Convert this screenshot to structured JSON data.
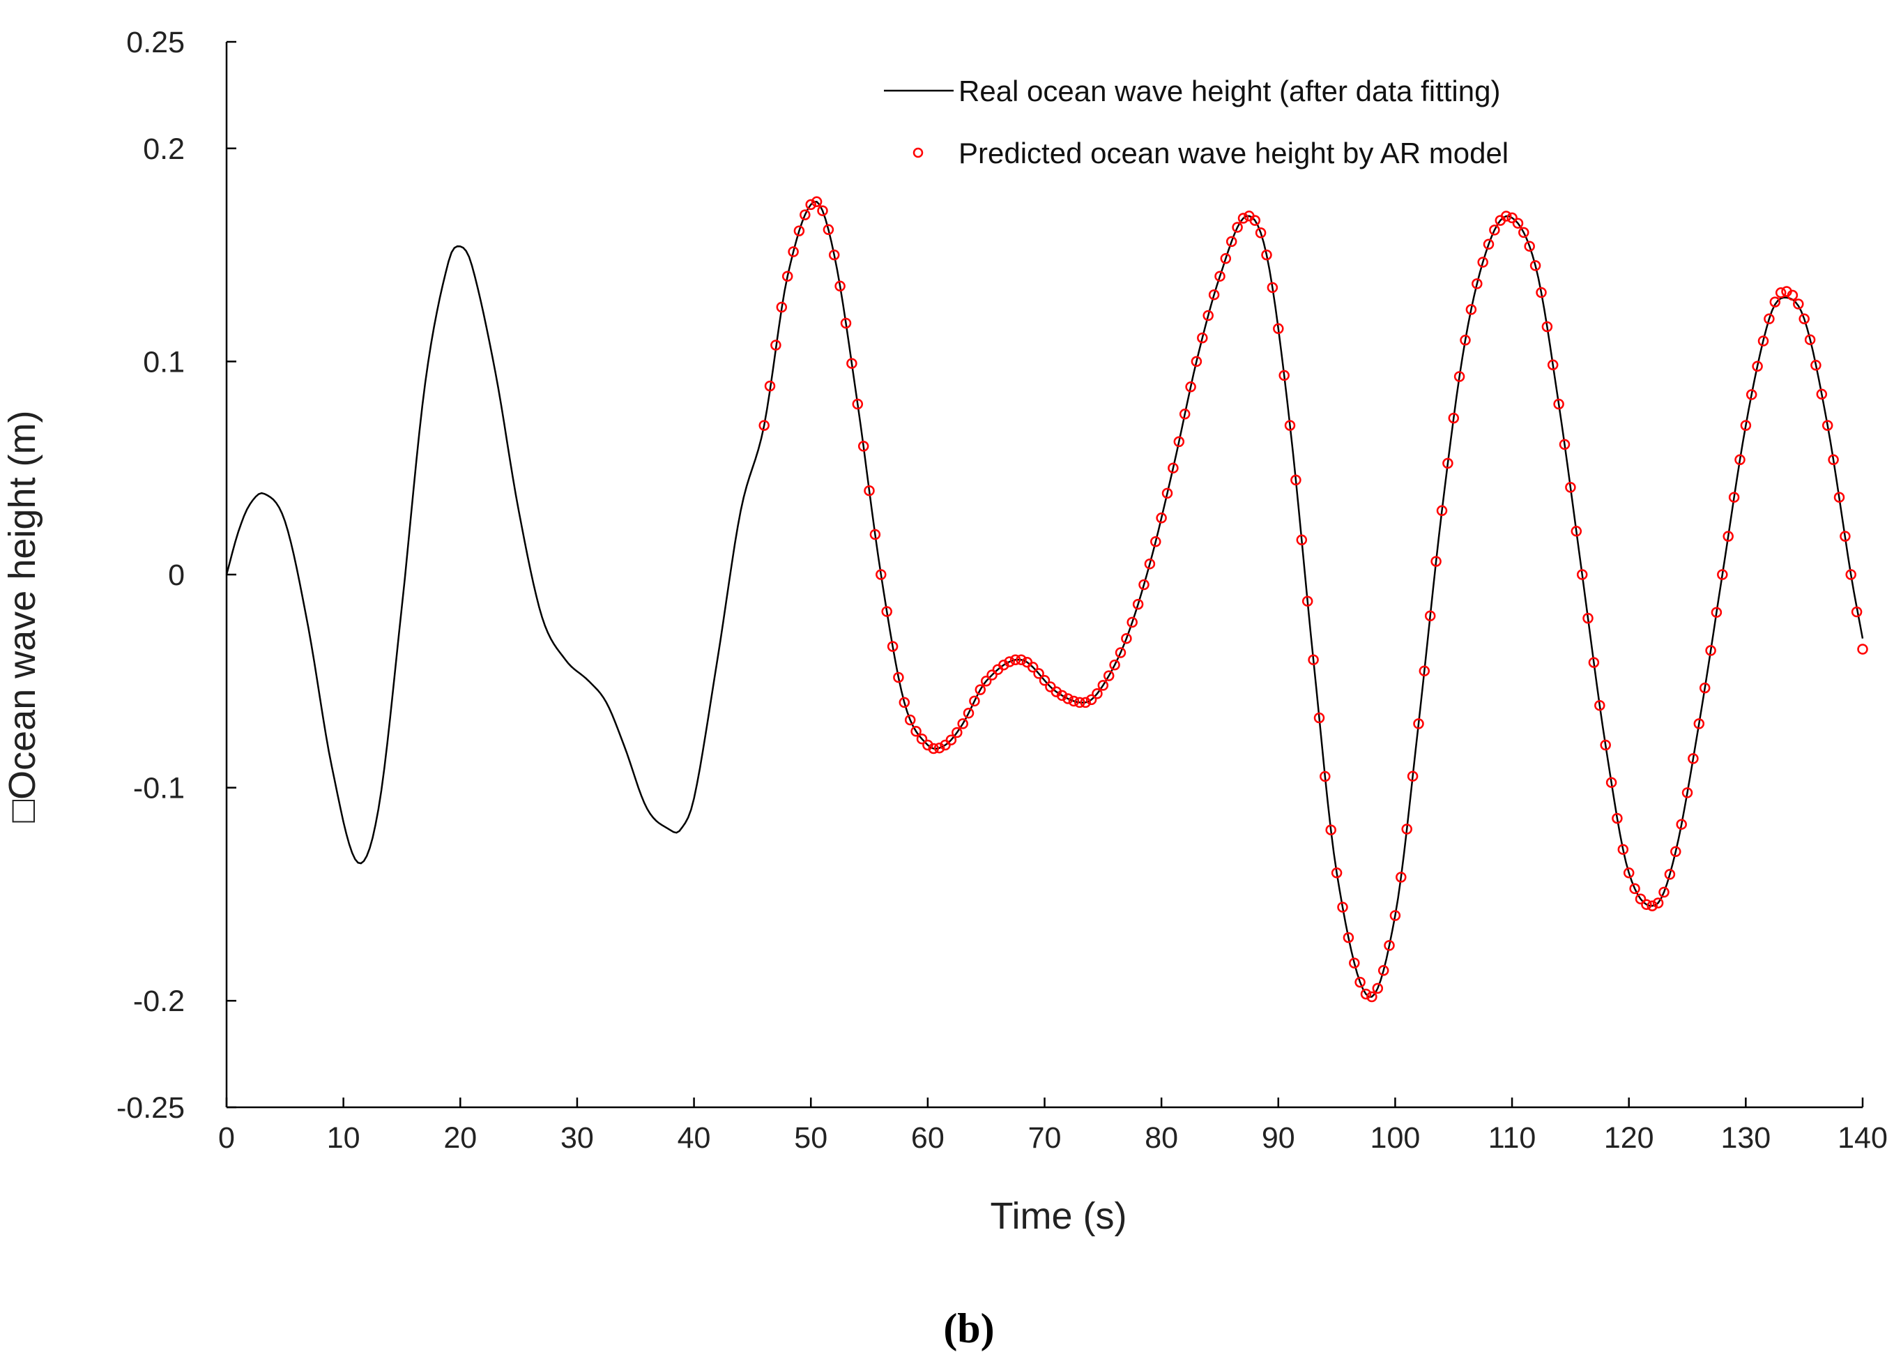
{
  "chart_data": {
    "type": "line",
    "title": "",
    "panel_label": "(b)",
    "xlabel": "Time (s)",
    "ylabel": "□Ocean wave height (m)",
    "xlim": [
      0,
      140
    ],
    "ylim": [
      -0.25,
      0.25
    ],
    "x_ticks": [
      0,
      10,
      20,
      30,
      40,
      50,
      60,
      70,
      80,
      90,
      100,
      110,
      120,
      130,
      140
    ],
    "x_tick_labels": [
      "0",
      "10",
      "20",
      "30",
      "40",
      "50",
      "60",
      "70",
      "80",
      "90",
      "100",
      "110",
      "120",
      "130",
      "140"
    ],
    "y_ticks": [
      -0.25,
      -0.2,
      -0.1,
      0,
      0.1,
      0.2,
      0.25
    ],
    "y_tick_labels": [
      "-0.25",
      "-0.2",
      "-0.1",
      "0",
      "0.1",
      "0.2",
      "0.25"
    ],
    "grid": false,
    "legend_position": "top-right",
    "series": [
      {
        "name": "Real ocean wave height (after data fitting)",
        "style": "line",
        "color": "#000000",
        "x": [
          0,
          1,
          2,
          3.2,
          5,
          7,
          9,
          11.2,
          13,
          15,
          17,
          19,
          20,
          21,
          23,
          25,
          27,
          29,
          31,
          32.5,
          34,
          36,
          38,
          38.8,
          40,
          42,
          44,
          46,
          48,
          50.3,
          52,
          54,
          56,
          58,
          60,
          61.5,
          63,
          65,
          68,
          71,
          73.5,
          75,
          77,
          79,
          81,
          83,
          85,
          87.2,
          89,
          91,
          93,
          95,
          97.7,
          100,
          102,
          104,
          106,
          108,
          109.8,
          112,
          114,
          116,
          118,
          120,
          122.3,
          124,
          126,
          128,
          130,
          132,
          133.3,
          135,
          137,
          139,
          140
        ],
        "y": [
          0,
          0.02,
          0.033,
          0.038,
          0.025,
          -0.025,
          -0.09,
          -0.135,
          -0.11,
          -0.015,
          0.09,
          0.147,
          0.154,
          0.145,
          0.095,
          0.03,
          -0.02,
          -0.04,
          -0.05,
          -0.06,
          -0.08,
          -0.11,
          -0.12,
          -0.12,
          -0.105,
          -0.04,
          0.03,
          0.07,
          0.14,
          0.175,
          0.15,
          0.08,
          0.0,
          -0.06,
          -0.08,
          -0.08,
          -0.07,
          -0.05,
          -0.04,
          -0.055,
          -0.06,
          -0.052,
          -0.03,
          0.005,
          0.05,
          0.1,
          0.14,
          0.168,
          0.15,
          0.07,
          -0.04,
          -0.14,
          -0.198,
          -0.16,
          -0.07,
          0.03,
          0.11,
          0.155,
          0.168,
          0.145,
          0.08,
          0.0,
          -0.08,
          -0.14,
          -0.155,
          -0.13,
          -0.07,
          0.0,
          0.07,
          0.12,
          0.13,
          0.12,
          0.07,
          0.0,
          -0.03
        ]
      },
      {
        "name": "Predicted ocean wave height by AR model",
        "style": "markers",
        "color": "#ff0000",
        "x": [
          46,
          48,
          50.3,
          52,
          54,
          56,
          58,
          60,
          61.5,
          63,
          65,
          68,
          71,
          73.5,
          75,
          77,
          79,
          81,
          83,
          85,
          87.2,
          89,
          91,
          93,
          95,
          97.7,
          100,
          102,
          104,
          106,
          108,
          109.8,
          112,
          114,
          116,
          118,
          120,
          122.3,
          124,
          126,
          128,
          130,
          132,
          133.3,
          135,
          137,
          139,
          140
        ],
        "y": [
          0.07,
          0.14,
          0.175,
          0.15,
          0.08,
          0.0,
          -0.06,
          -0.08,
          -0.08,
          -0.07,
          -0.05,
          -0.04,
          -0.055,
          -0.06,
          -0.052,
          -0.03,
          0.005,
          0.05,
          0.1,
          0.14,
          0.168,
          0.15,
          0.07,
          -0.04,
          -0.14,
          -0.198,
          -0.16,
          -0.07,
          0.03,
          0.11,
          0.155,
          0.168,
          0.145,
          0.08,
          0.0,
          -0.08,
          -0.14,
          -0.155,
          -0.13,
          -0.07,
          0.0,
          0.07,
          0.12,
          0.133,
          0.12,
          0.07,
          0.0,
          -0.035
        ]
      }
    ]
  }
}
